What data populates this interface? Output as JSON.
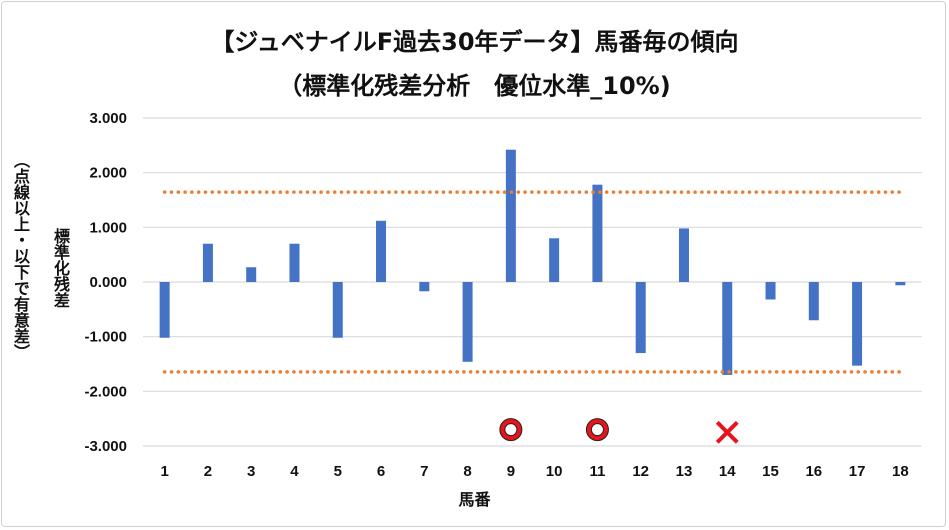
{
  "chart_data": {
    "type": "bar",
    "title": "【ジュベナイルF過去30年データ】馬番毎の傾向",
    "subtitle": "（標準化残差分析　優位水準_10%)",
    "xlabel": "馬番",
    "ylabel": "標準化残差",
    "ylabel2": "（点線以上・以下で有意差）",
    "categories": [
      "1",
      "2",
      "3",
      "4",
      "5",
      "6",
      "7",
      "8",
      "9",
      "10",
      "11",
      "12",
      "13",
      "14",
      "15",
      "16",
      "17",
      "18"
    ],
    "values": [
      -1.02,
      0.7,
      0.27,
      0.7,
      -1.02,
      1.12,
      -0.17,
      -1.46,
      2.42,
      0.8,
      1.78,
      -1.3,
      0.98,
      -1.7,
      -0.32,
      -0.7,
      -1.53,
      -0.06
    ],
    "ylim": [
      -3,
      3
    ],
    "yticks": [
      "-3.000",
      "-2.000",
      "-1.000",
      "0.000",
      "1.000",
      "2.000",
      "3.000"
    ],
    "ytick_values": [
      -3,
      -2,
      -1,
      0,
      1,
      2,
      3
    ],
    "threshold_lines": [
      1.645,
      -1.645
    ],
    "markers": [
      {
        "category": "9",
        "symbol": "circle",
        "y": -2.7
      },
      {
        "category": "11",
        "symbol": "circle",
        "y": -2.7
      },
      {
        "category": "14",
        "symbol": "cross",
        "y": -2.75
      }
    ],
    "grid": true,
    "colors": {
      "bar": "#4472C4",
      "threshold": "#ED7D31",
      "marker": "#E8141C",
      "grid": "#D9D9D9"
    }
  }
}
